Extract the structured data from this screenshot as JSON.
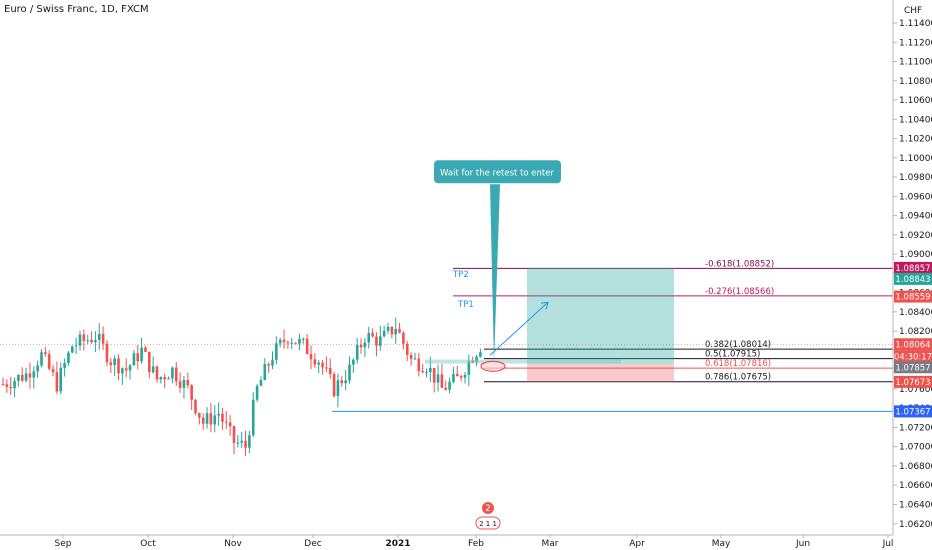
{
  "header": {
    "symbol_title": "Euro / Swiss Franc, 1D, FXCM",
    "currency": "CHF"
  },
  "chart_data": {
    "type": "candlestick",
    "title": "Euro / Swiss Franc, 1D, FXCM",
    "y_unit": "CHF",
    "ylim": [
      1.062,
      1.117
    ],
    "y_ticks": [
      "1.11400",
      "1.11200",
      "1.11000",
      "1.10800",
      "1.10600",
      "1.10400",
      "1.10200",
      "1.10000",
      "1.09800",
      "1.09600",
      "1.09400",
      "1.09200",
      "1.09000",
      "1.08800",
      "1.08600",
      "1.08400",
      "1.08200",
      "1.08000",
      "1.07800",
      "1.07600",
      "1.07400",
      "1.07200",
      "1.07000",
      "1.06800",
      "1.06600",
      "1.06400",
      "1.06200"
    ],
    "x_ticks": [
      "Sep",
      "Oct",
      "Nov",
      "Dec",
      "2021",
      "Feb",
      "Mar",
      "Apr",
      "May",
      "Jun",
      "Jul"
    ],
    "price_tags": [
      {
        "label": "1.08857",
        "value": 1.08857,
        "color": "#c2185b"
      },
      {
        "label": "1.08843",
        "value": 1.08843,
        "color": "#26a69a"
      },
      {
        "label": "1.08559",
        "value": 1.08559,
        "color": "#ef5350"
      },
      {
        "label": "1.08064",
        "value": 1.08064,
        "color": "#ef5350"
      },
      {
        "label": "04:30:17",
        "value": 1.07995,
        "color": "#ef5350"
      },
      {
        "label": "1.07857",
        "value": 1.07857,
        "color": "#787b86"
      },
      {
        "label": "1.07673",
        "value": 1.07673,
        "color": "#ef5350"
      },
      {
        "label": "1.07367",
        "value": 1.07367,
        "color": "#2962ff"
      }
    ],
    "fib_levels": [
      {
        "label": "-0.618(1.08852)",
        "value": 1.08852,
        "color": "#880e4f"
      },
      {
        "label": "-0.276(1.08566)",
        "value": 1.08566,
        "color": "#c2185b"
      },
      {
        "label": "0.382(1.08014)",
        "value": 1.08014,
        "color": "#131722"
      },
      {
        "label": "0.5(1.07915)",
        "value": 1.07915,
        "color": "#131722"
      },
      {
        "label": "0.618(1.07816)",
        "value": 1.07816,
        "color": "#ef5350"
      },
      {
        "label": "0.786(1.07675)",
        "value": 1.07675,
        "color": "#131722"
      }
    ],
    "annotations": [
      {
        "label": "TP2",
        "value": 1.0876
      },
      {
        "label": "TP1",
        "value": 1.0845
      },
      {
        "label": "Wait for the retest to enter",
        "value": 1.0985
      }
    ],
    "support_level": 1.07367,
    "position": {
      "entry": 1.07857,
      "target": 1.08857,
      "stop": 1.07673
    },
    "candles": []
  },
  "overlays": {
    "events_marker_count": "2",
    "dividends_marker": "2 1 1"
  },
  "colors": {
    "up": "#26a69a",
    "down": "#ef5350",
    "grid": "#f0f3fa",
    "axis": "#b2b5be",
    "callout_bg": "#3aa9b3"
  }
}
